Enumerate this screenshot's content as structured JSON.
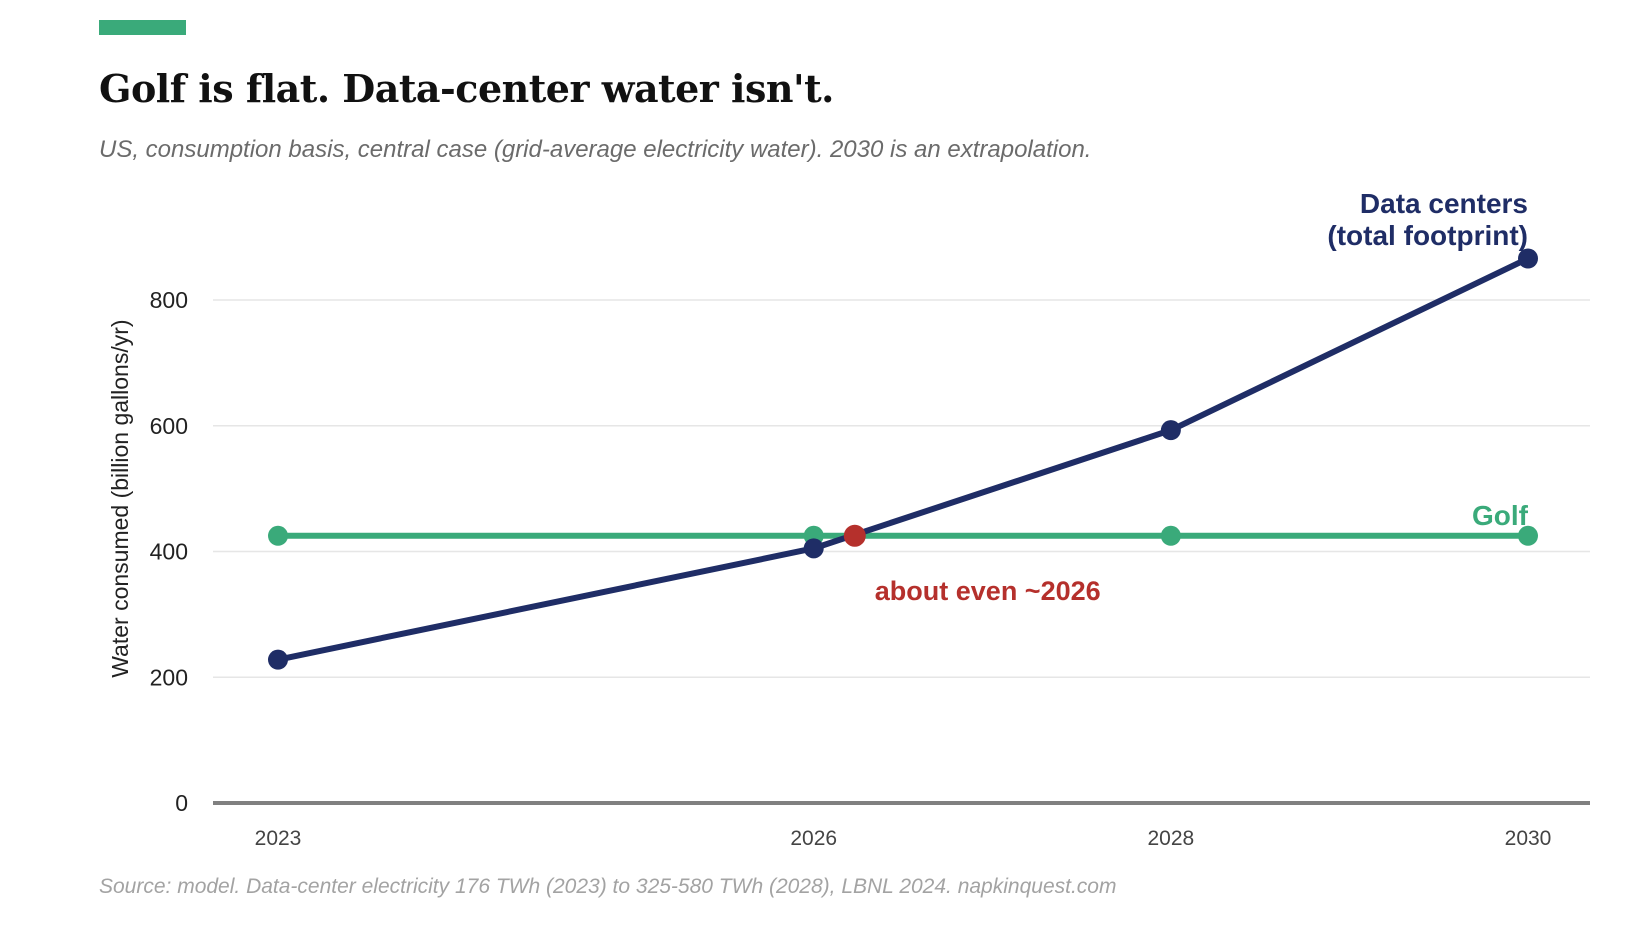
{
  "header": {
    "title": "Golf is flat. Data-center water isn't.",
    "subtitle": "US, consumption basis, central case (grid-average electricity water). 2030 is an extrapolation."
  },
  "footer": {
    "source": "Source: model. Data-center electricity 176 TWh (2023) to 325-580 TWh (2028), LBNL 2024. napkinquest.com"
  },
  "colors": {
    "accent": "#3aaa7a",
    "golf": "#3aaa7a",
    "data_centers": "#1f2d66",
    "crossover": "#b5302c",
    "grid": "#e6e6e6",
    "baseline": "#808080",
    "tick_text": "#222222",
    "x_tick_text": "#444444"
  },
  "chart_data": {
    "type": "line",
    "title": "Golf is flat. Data-center water isn't.",
    "subtitle": "US, consumption basis, central case (grid-average electricity water). 2030 is an extrapolation.",
    "xlabel": "",
    "ylabel": "Water consumed (billion gallons/yr)",
    "x": [
      2023,
      2026,
      2028,
      2030
    ],
    "x_tick_labels": [
      "2023",
      "2026",
      "2028",
      "2030"
    ],
    "xlim": [
      2022.3,
      2030.35
    ],
    "ylim": [
      0,
      880
    ],
    "y_ticks": [
      0,
      200,
      400,
      600,
      800
    ],
    "y_tick_labels": [
      "0",
      "200",
      "400",
      "600",
      "800"
    ],
    "grid": "horizontal",
    "series": [
      {
        "name": "Data centers\n(total footprint)",
        "key": "data_centers",
        "values": [
          228,
          405,
          593,
          866
        ]
      },
      {
        "name": "Golf",
        "key": "golf",
        "values": [
          425,
          425,
          425,
          425
        ]
      }
    ],
    "annotations": [
      {
        "text": "about even ~2026",
        "x": 2026.23,
        "y": 425,
        "marker": "crossover-point"
      }
    ],
    "source": "Source: model. Data-center electricity 176 TWh (2023) to 325-580 TWh (2028), LBNL 2024. napkinquest.com"
  }
}
